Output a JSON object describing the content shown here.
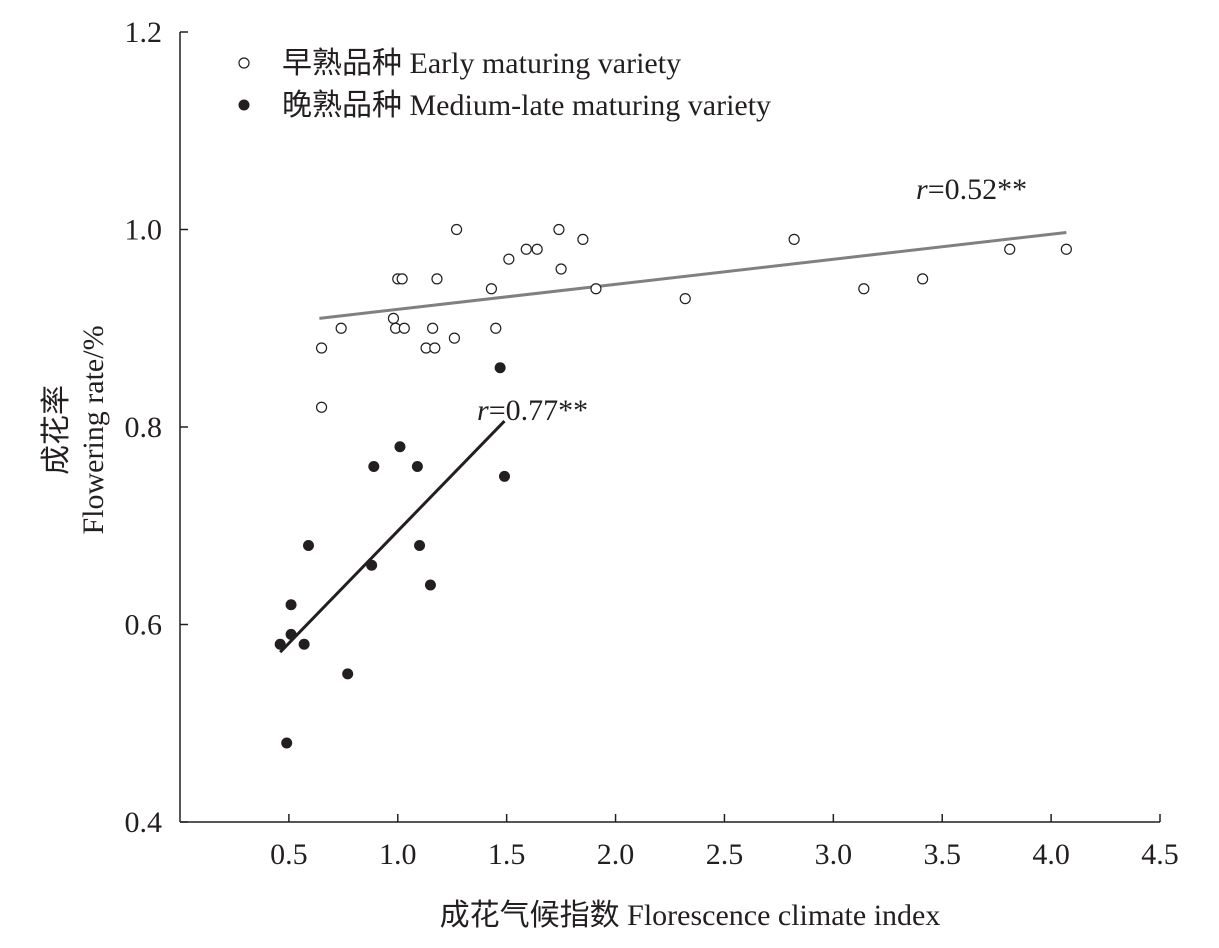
{
  "chart_data": {
    "type": "scatter",
    "xlabel": "成花气候指数 Florescence climate index",
    "ylabel_line1": "成花率",
    "ylabel_line2": "Flowering rate/%",
    "xlim": [
      0.0,
      4.5
    ],
    "ylim": [
      0.4,
      1.2
    ],
    "x_ticks": [
      {
        "value": 0.5,
        "label": "0.5"
      },
      {
        "value": 1.0,
        "label": "1.0"
      },
      {
        "value": 1.5,
        "label": "1.5"
      },
      {
        "value": 2.0,
        "label": "2.0"
      },
      {
        "value": 2.5,
        "label": "2.5"
      },
      {
        "value": 3.0,
        "label": "3.0"
      },
      {
        "value": 3.5,
        "label": "3.5"
      },
      {
        "value": 4.0,
        "label": "4.0"
      },
      {
        "value": 4.5,
        "label": "4.5"
      }
    ],
    "y_ticks": [
      {
        "value": 0.4,
        "label": "0.4"
      },
      {
        "value": 0.6,
        "label": "0.6"
      },
      {
        "value": 0.8,
        "label": "0.8"
      },
      {
        "value": 1.0,
        "label": "1.0"
      },
      {
        "value": 1.2,
        "label": "1.2"
      }
    ],
    "legend_position": "top-left",
    "series": [
      {
        "name": "早熟品种 Early maturing variety",
        "marker": "open-circle",
        "color": "#231f20",
        "points": [
          [
            0.65,
            0.88
          ],
          [
            0.65,
            0.82
          ],
          [
            0.74,
            0.9
          ],
          [
            0.98,
            0.91
          ],
          [
            0.99,
            0.9
          ],
          [
            1.0,
            0.95
          ],
          [
            1.02,
            0.95
          ],
          [
            1.03,
            0.9
          ],
          [
            1.13,
            0.88
          ],
          [
            1.16,
            0.9
          ],
          [
            1.17,
            0.88
          ],
          [
            1.18,
            0.95
          ],
          [
            1.26,
            0.89
          ],
          [
            1.27,
            1.0
          ],
          [
            1.43,
            0.94
          ],
          [
            1.45,
            0.9
          ],
          [
            1.51,
            0.97
          ],
          [
            1.59,
            0.98
          ],
          [
            1.64,
            0.98
          ],
          [
            1.74,
            1.0
          ],
          [
            1.75,
            0.96
          ],
          [
            1.85,
            0.99
          ],
          [
            1.91,
            0.94
          ],
          [
            2.32,
            0.93
          ],
          [
            2.82,
            0.99
          ],
          [
            3.14,
            0.94
          ],
          [
            3.41,
            0.95
          ],
          [
            3.81,
            0.98
          ],
          [
            4.07,
            0.98
          ]
        ],
        "fit": {
          "x": [
            0.64,
            4.07
          ],
          "y": [
            0.91,
            0.997
          ],
          "color": "#808080",
          "label_r": "r",
          "label_value": "=0.52**"
        }
      },
      {
        "name": "晚熟品种 Medium-late maturing variety",
        "marker": "filled-circle",
        "color": "#231f20",
        "points": [
          [
            0.46,
            0.58
          ],
          [
            0.49,
            0.48
          ],
          [
            0.51,
            0.62
          ],
          [
            0.51,
            0.59
          ],
          [
            0.57,
            0.58
          ],
          [
            0.59,
            0.68
          ],
          [
            0.77,
            0.55
          ],
          [
            0.88,
            0.66
          ],
          [
            0.89,
            0.76
          ],
          [
            1.01,
            0.78
          ],
          [
            1.09,
            0.76
          ],
          [
            1.1,
            0.68
          ],
          [
            1.15,
            0.64
          ],
          [
            1.47,
            0.86
          ],
          [
            1.49,
            0.75
          ]
        ],
        "fit": {
          "x": [
            0.46,
            1.49
          ],
          "y": [
            0.572,
            0.806
          ],
          "color": "#231f20",
          "label_r": "r",
          "label_value": "=0.77**"
        }
      }
    ]
  }
}
